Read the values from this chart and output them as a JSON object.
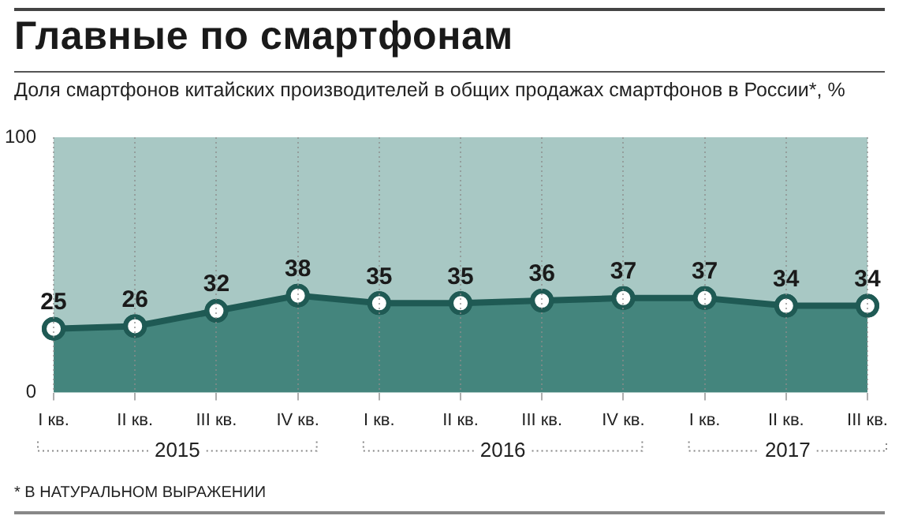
{
  "chart_data": {
    "type": "area",
    "title": "Главные по смартфонам",
    "subtitle": "Доля смартфонов китайских производителей в общих продажах смартфонов в России*, %",
    "categories": [
      "I кв.",
      "II кв.",
      "III кв.",
      "IV кв.",
      "I кв.",
      "II кв.",
      "III кв.",
      "IV кв.",
      "I кв.",
      "II кв.",
      "III кв."
    ],
    "series": [
      {
        "color": "#44857d",
        "values": [
          25,
          26,
          32,
          38,
          35,
          35,
          36,
          37,
          37,
          34,
          34
        ]
      }
    ],
    "ylim": [
      0,
      100
    ],
    "yticks": [
      0,
      100
    ],
    "grid": "x",
    "marker": "circle",
    "data_labels": true,
    "bands": [
      {
        "axis": "y",
        "from": 0,
        "to": 100,
        "color": "#a8c8c4"
      }
    ],
    "annotations": [
      "2015",
      "2016",
      "2017",
      "* В НАТУРАЛЬНОМ ВЫРАЖЕНИИ"
    ]
  }
}
